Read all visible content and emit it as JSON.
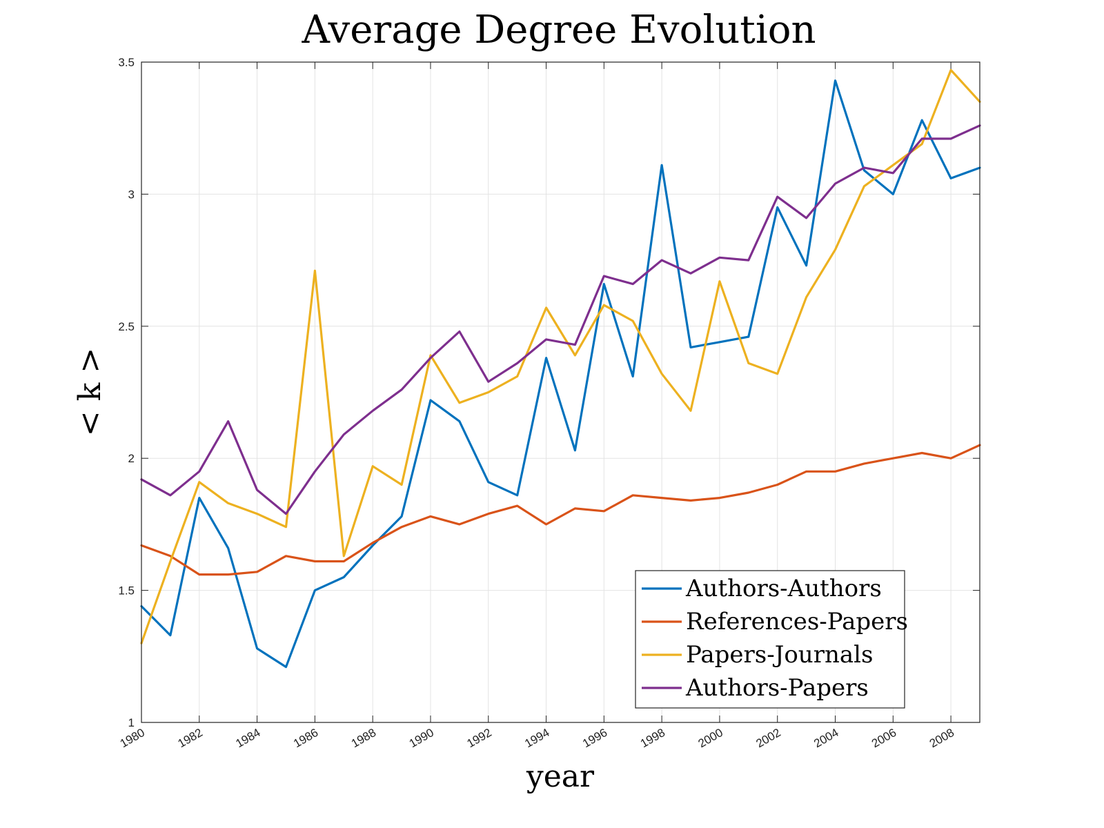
{
  "chart_data": {
    "type": "line",
    "title": "Average Degree Evolution",
    "xlabel": "year",
    "ylabel": "< k >",
    "xlim": [
      1980,
      2009
    ],
    "ylim": [
      1,
      3.5
    ],
    "x_ticks": [
      "1980",
      "1982",
      "1984",
      "1986",
      "1988",
      "1990",
      "1992",
      "1994",
      "1996",
      "1998",
      "2000",
      "2002",
      "2004",
      "2006",
      "2008"
    ],
    "y_ticks": [
      "1",
      "1.5",
      "2",
      "2.5",
      "3",
      "3.5"
    ],
    "grid": true,
    "legend_position": "bottom-right",
    "x": [
      1980,
      1981,
      1982,
      1983,
      1984,
      1985,
      1986,
      1987,
      1988,
      1989,
      1990,
      1991,
      1992,
      1993,
      1994,
      1995,
      1996,
      1997,
      1998,
      1999,
      2000,
      2001,
      2002,
      2003,
      2004,
      2005,
      2006,
      2007,
      2008,
      2009
    ],
    "series": [
      {
        "name": "Authors-Authors",
        "color": "#0072BD",
        "values": [
          1.44,
          1.33,
          1.85,
          1.66,
          1.28,
          1.21,
          1.5,
          1.55,
          1.67,
          1.78,
          2.22,
          2.14,
          1.91,
          1.86,
          2.38,
          2.03,
          2.66,
          2.31,
          3.11,
          2.42,
          2.44,
          2.46,
          2.95,
          2.73,
          3.43,
          3.09,
          3.0,
          3.28,
          3.06,
          3.1
        ]
      },
      {
        "name": "References-Papers",
        "color": "#D95319",
        "values": [
          1.67,
          1.63,
          1.56,
          1.56,
          1.57,
          1.63,
          1.61,
          1.61,
          1.68,
          1.74,
          1.78,
          1.75,
          1.79,
          1.82,
          1.75,
          1.81,
          1.8,
          1.86,
          1.85,
          1.84,
          1.85,
          1.87,
          1.9,
          1.95,
          1.95,
          1.98,
          2.0,
          2.02,
          2.0,
          2.05
        ]
      },
      {
        "name": "Papers-Journals",
        "color": "#EDB120",
        "values": [
          1.3,
          1.61,
          1.91,
          1.83,
          1.79,
          1.74,
          2.71,
          1.63,
          1.97,
          1.9,
          2.39,
          2.21,
          2.25,
          2.31,
          2.57,
          2.39,
          2.58,
          2.52,
          2.32,
          2.18,
          2.67,
          2.36,
          2.32,
          2.61,
          2.79,
          3.03,
          3.11,
          3.19,
          3.47,
          3.35
        ]
      },
      {
        "name": "Authors-Papers",
        "color": "#7E2F8E",
        "values": [
          1.92,
          1.86,
          1.95,
          2.14,
          1.88,
          1.79,
          1.95,
          2.09,
          2.18,
          2.26,
          2.38,
          2.48,
          2.29,
          2.36,
          2.45,
          2.43,
          2.69,
          2.66,
          2.75,
          2.7,
          2.76,
          2.75,
          2.99,
          2.91,
          3.04,
          3.1,
          3.08,
          3.21,
          3.21,
          3.26
        ]
      }
    ]
  }
}
